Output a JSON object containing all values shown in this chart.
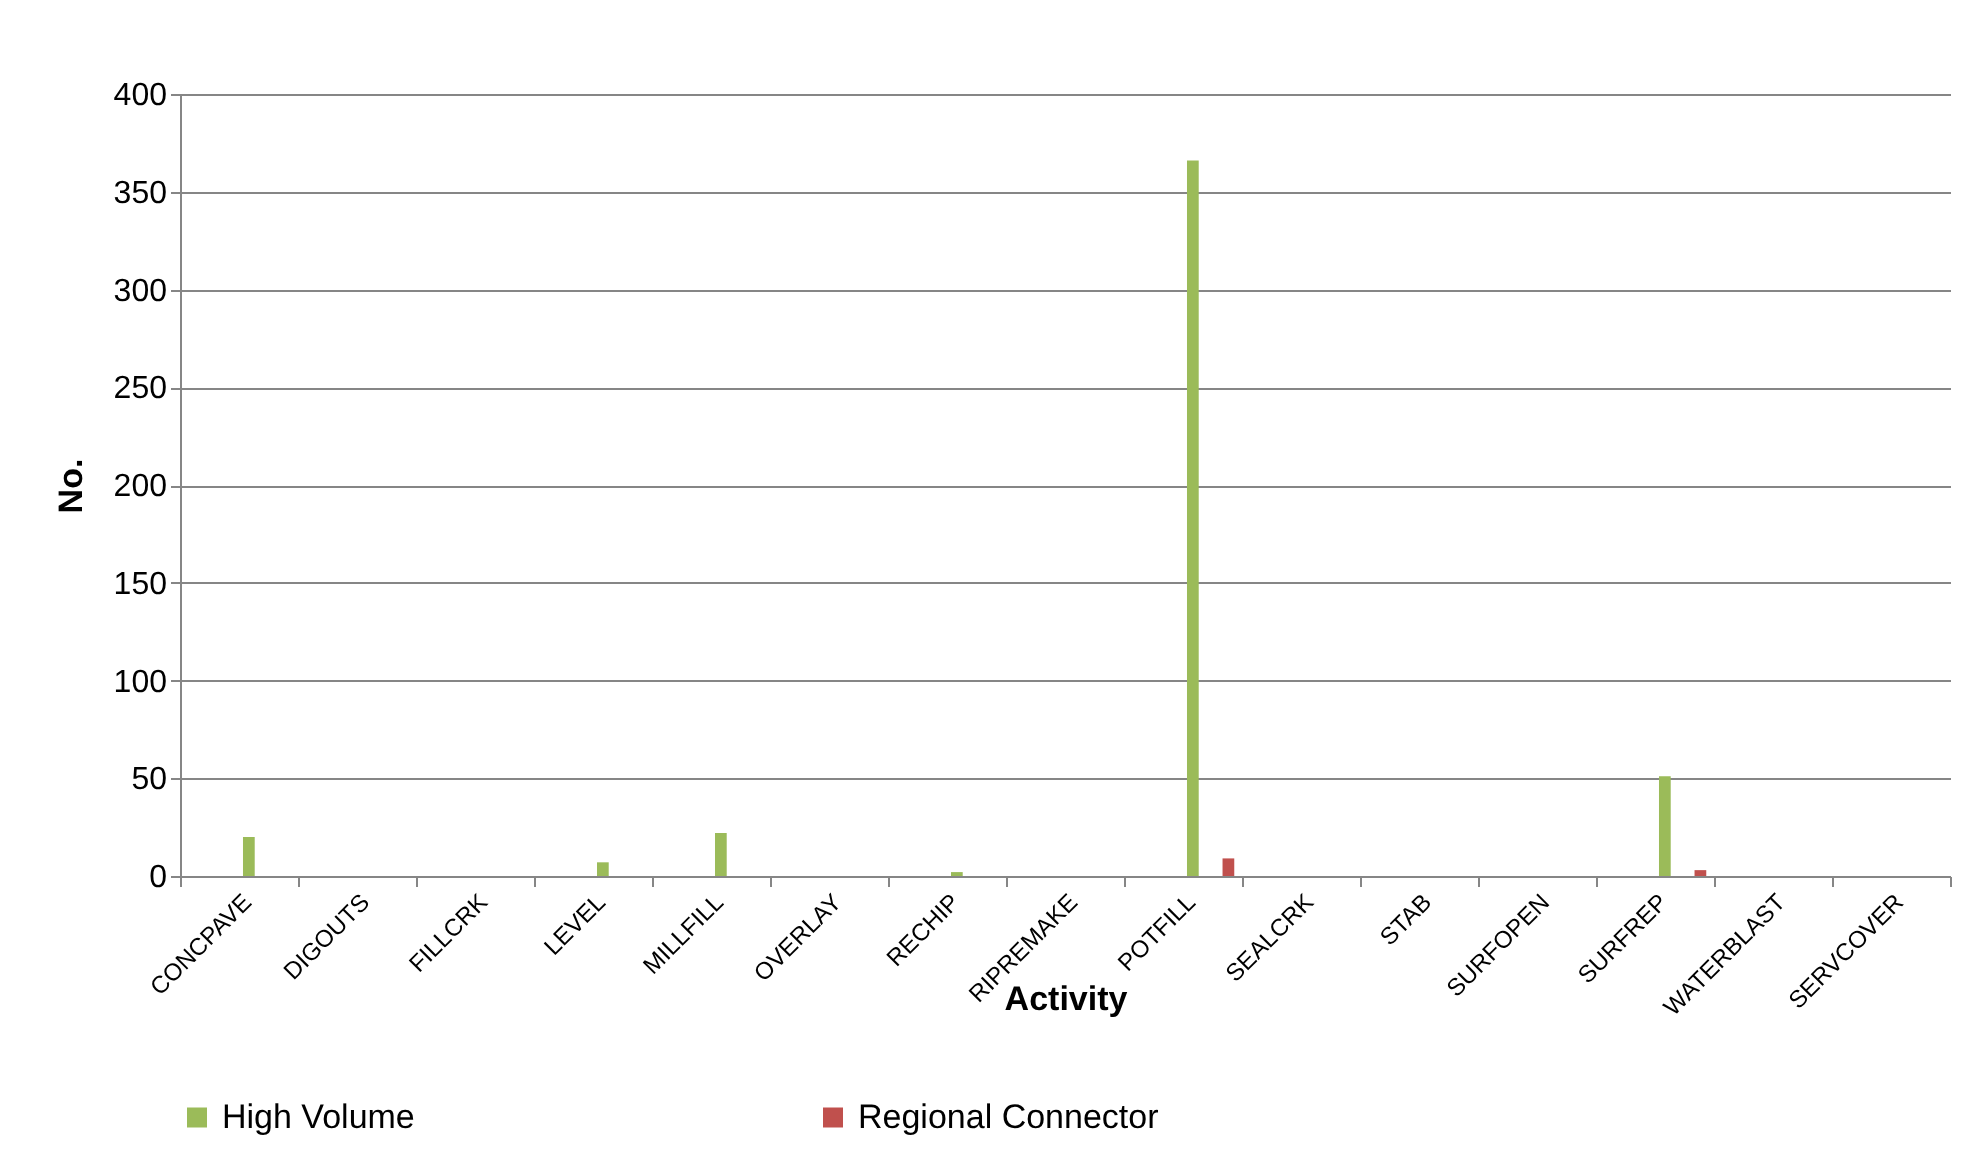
{
  "chart_data": {
    "type": "bar",
    "xlabel": "Activity",
    "ylabel": "No.",
    "categories": [
      "CONCPAVE",
      "DIGOUTS",
      "FILLCRK",
      "LEVEL",
      "MILLFILL",
      "OVERLAY",
      "RECHIP",
      "RIPREMAKE",
      "POTFILL",
      "SEALCRK",
      "STAB",
      "SURFOPEN",
      "SURFREP",
      "WATERBLAST",
      "SERVCOVER"
    ],
    "series": [
      {
        "name": "High Volume",
        "color": "#9bbb59",
        "values": [
          20,
          0,
          0,
          7,
          22,
          0,
          2,
          0,
          366,
          0,
          0,
          0,
          51,
          0,
          0
        ]
      },
      {
        "name": "Regional Connector",
        "color": "#c0504d",
        "values": [
          0,
          0,
          0,
          0,
          0,
          0,
          0,
          0,
          9,
          0,
          0,
          0,
          3,
          0,
          0
        ]
      }
    ],
    "ylim": [
      0,
      400
    ],
    "yticks": [
      0,
      50,
      100,
      150,
      200,
      250,
      300,
      350,
      400
    ],
    "grid": "y",
    "legend": "bottom"
  }
}
